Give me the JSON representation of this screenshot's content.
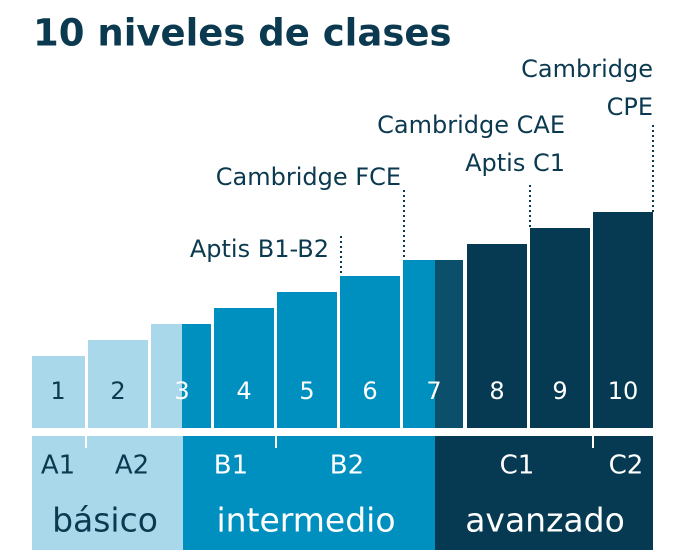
{
  "header": {
    "title": "10 niveles de clases"
  },
  "levels": [
    "1",
    "2",
    "3",
    "4",
    "5",
    "6",
    "7",
    "8",
    "9",
    "10"
  ],
  "cefr": [
    "A1",
    "A2",
    "B1",
    "B2",
    "C1",
    "C2"
  ],
  "groups": [
    "básico",
    "intermedio",
    "avanzado"
  ],
  "exams": [
    "Aptis B1-B2",
    "Cambridge FCE",
    "Cambridge CAE",
    "Aptis C1",
    "Cambridge",
    "CPE"
  ]
}
